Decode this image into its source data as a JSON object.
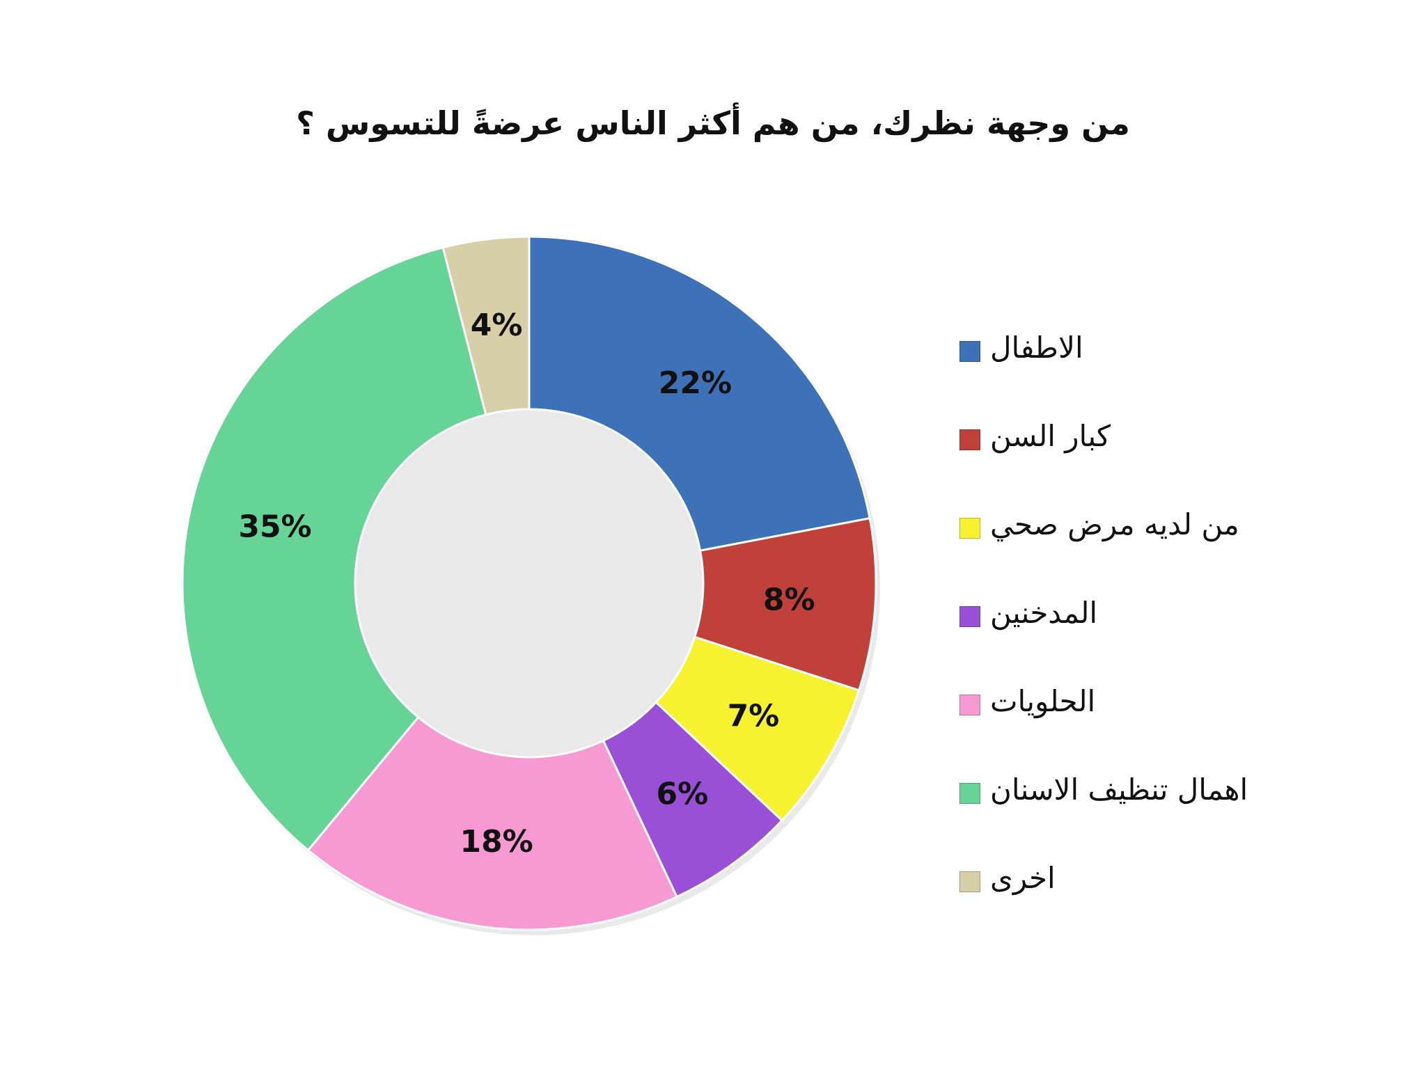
{
  "chart_data": {
    "type": "pie",
    "variant": "donut",
    "title": "من وجهة نظرك، من هم أكثر الناس عرضةً للتسوس ؟",
    "legend_position": "right",
    "slices": [
      {
        "label": "الاطفال",
        "value": 22,
        "value_label": "22%",
        "color": "#3d72b8"
      },
      {
        "label": "كبار السن",
        "value": 8,
        "value_label": "8%",
        "color": "#c0403a"
      },
      {
        "label": "من لديه مرض صحي",
        "value": 7,
        "value_label": "7%",
        "color": "#f7f230"
      },
      {
        "label": "المدخنين",
        "value": 6,
        "value_label": "6%",
        "color": "#9a50d6"
      },
      {
        "label": "الحلويات",
        "value": 18,
        "value_label": "18%",
        "color": "#f79ad4"
      },
      {
        "label": "اهمال تنظيف الاسنان",
        "value": 35,
        "value_label": "35%",
        "color": "#66d496"
      },
      {
        "label": "اخرى",
        "value": 4,
        "value_label": "4%",
        "color": "#d7cfa8"
      }
    ]
  }
}
